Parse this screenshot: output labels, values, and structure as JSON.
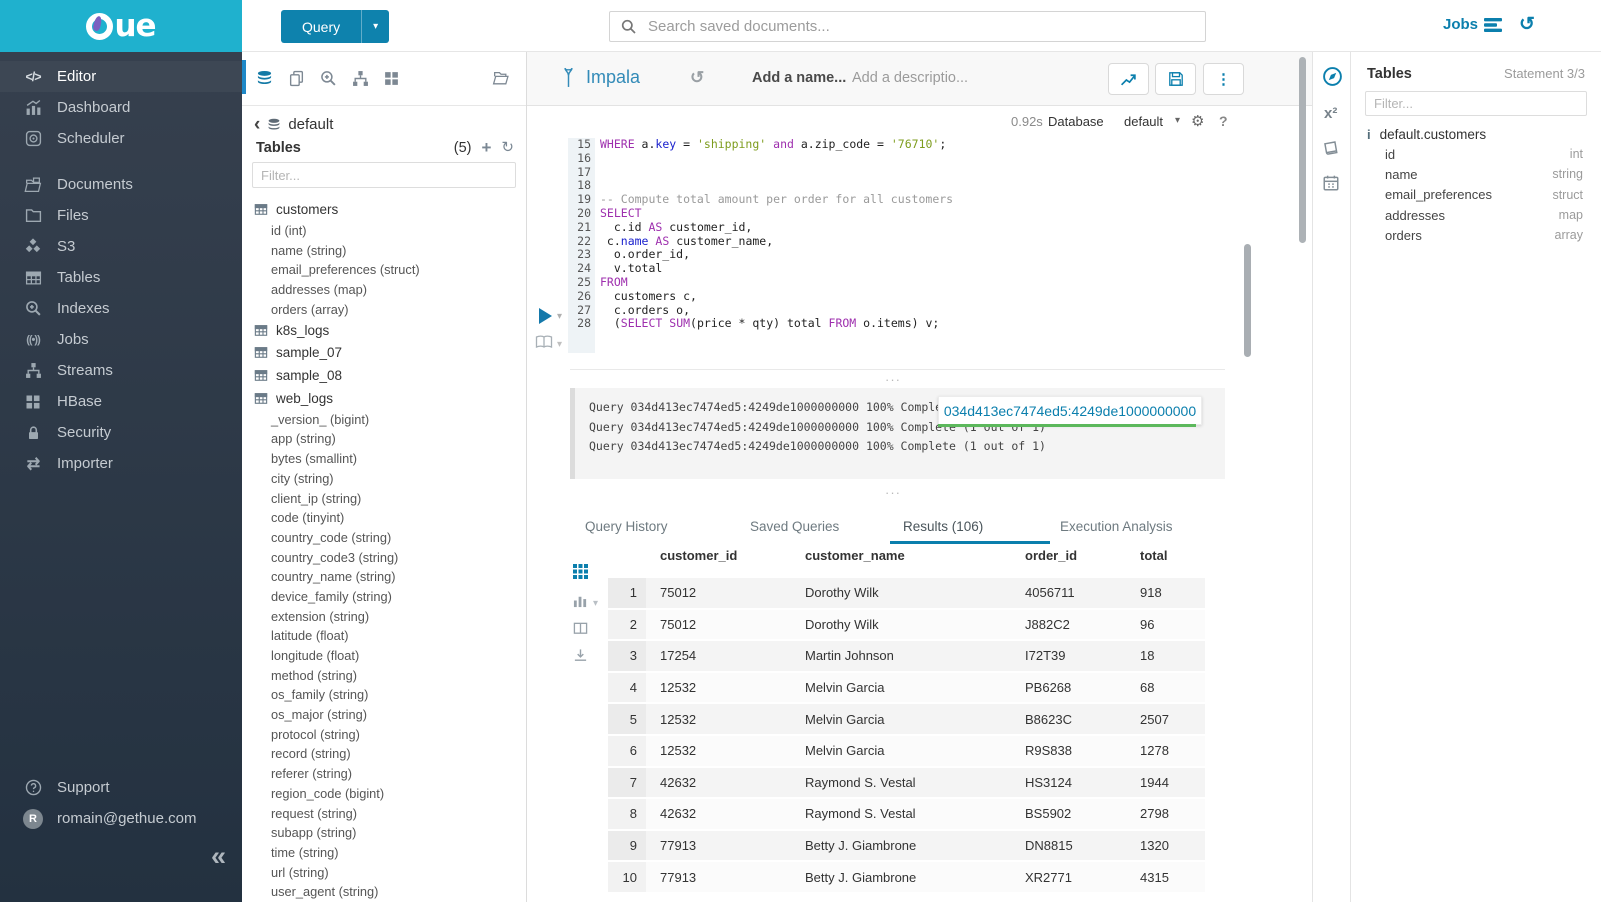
{
  "topbar": {
    "query_button": "Query",
    "query_caret": "▾",
    "search_placeholder": "Search saved documents...",
    "jobs_label": "Jobs",
    "history_glyph": "↺"
  },
  "logo": {
    "text": "ue"
  },
  "sidebar": {
    "items": [
      {
        "label": "Editor",
        "icon": "code-icon",
        "active": true
      },
      {
        "label": "Dashboard",
        "icon": "dashboard-icon"
      },
      {
        "label": "Scheduler",
        "icon": "scheduler-icon"
      },
      {
        "label": "Documents",
        "icon": "documents-icon",
        "gap_before": true
      },
      {
        "label": "Files",
        "icon": "folder-icon"
      },
      {
        "label": "S3",
        "icon": "cubes-icon"
      },
      {
        "label": "Tables",
        "icon": "table-grid-icon"
      },
      {
        "label": "Indexes",
        "icon": "search-plus-icon"
      },
      {
        "label": "Jobs",
        "icon": "broadcast-icon"
      },
      {
        "label": "Streams",
        "icon": "sitemap-icon"
      },
      {
        "label": "HBase",
        "icon": "blocks-icon"
      },
      {
        "label": "Security",
        "icon": "lock-icon"
      },
      {
        "label": "Importer",
        "icon": "swap-arrows-icon"
      }
    ],
    "support_label": "Support",
    "user_email": "romain@gethue.com",
    "avatar_initial": "R",
    "collapse_glyph": "«"
  },
  "db_panel": {
    "back_glyph": "‹",
    "database": "default",
    "title": "Tables",
    "count": "(5)",
    "plus_glyph": "+",
    "refresh_glyph": "↻",
    "filter_placeholder": "Filter...",
    "tables": [
      {
        "name": "customers",
        "columns": [
          "id (int)",
          "name (string)",
          "email_preferences (struct)",
          "addresses (map)",
          "orders (array)"
        ]
      },
      {
        "name": "k8s_logs",
        "columns": []
      },
      {
        "name": "sample_07",
        "columns": []
      },
      {
        "name": "sample_08",
        "columns": []
      },
      {
        "name": "web_logs",
        "columns": [
          "_version_ (bigint)",
          "app (string)",
          "bytes (smallint)",
          "city (string)",
          "client_ip (string)",
          "code (tinyint)",
          "country_code (string)",
          "country_code3 (string)",
          "country_name (string)",
          "device_family (string)",
          "extension (string)",
          "latitude (float)",
          "longitude (float)",
          "method (string)",
          "os_family (string)",
          "os_major (string)",
          "protocol (string)",
          "record (string)",
          "referer (string)",
          "region_code (bigint)",
          "request (string)",
          "subapp (string)",
          "time (string)",
          "url (string)",
          "user_agent (string)"
        ]
      }
    ]
  },
  "editor": {
    "engine": "Impala",
    "history_glyph": "↺",
    "name_placeholder": "Add a name...",
    "description_placeholder": "Add a descriptio...",
    "duration": "0.92s",
    "database_label": "Database",
    "database_value": "default",
    "db_caret": "▾",
    "gear_glyph": "⚙",
    "help_glyph": "?",
    "kebab_glyph": "⋮",
    "play_caret": "▾",
    "lines": [
      {
        "no": "15",
        "segs": [
          [
            "WHERE ",
            "kw"
          ],
          [
            "a.",
            ""
          ],
          [
            "key",
            "idb"
          ],
          [
            " = ",
            ""
          ],
          [
            "'shipping'",
            "str"
          ],
          [
            " ",
            ""
          ],
          [
            "and",
            "kw"
          ],
          [
            " a.zip_code = ",
            ""
          ],
          [
            "'76710'",
            "str"
          ],
          [
            ";",
            ""
          ]
        ]
      },
      {
        "no": "16",
        "segs": []
      },
      {
        "no": "17",
        "segs": []
      },
      {
        "no": "18",
        "segs": []
      },
      {
        "no": "19",
        "segs": [
          [
            "-- Compute total amount per order for all customers",
            "cm"
          ]
        ]
      },
      {
        "no": "20",
        "segs": [
          [
            "SELECT",
            "kw"
          ]
        ]
      },
      {
        "no": "21",
        "segs": [
          [
            "  c.id ",
            ""
          ],
          [
            "AS",
            "kw"
          ],
          [
            " customer_id,",
            ""
          ]
        ]
      },
      {
        "no": "22",
        "segs": [
          [
            " c.",
            ""
          ],
          [
            "name",
            "idb"
          ],
          [
            " ",
            ""
          ],
          [
            "AS",
            "kw"
          ],
          [
            " customer_name,",
            ""
          ]
        ]
      },
      {
        "no": "23",
        "segs": [
          [
            "  o.order_id,",
            ""
          ]
        ]
      },
      {
        "no": "24",
        "segs": [
          [
            "  v.total",
            ""
          ]
        ]
      },
      {
        "no": "25",
        "segs": [
          [
            "FROM",
            "kw"
          ]
        ]
      },
      {
        "no": "26",
        "segs": [
          [
            "  customers c,",
            ""
          ]
        ]
      },
      {
        "no": "27",
        "segs": [
          [
            "  c.orders o,",
            ""
          ]
        ]
      },
      {
        "no": "28",
        "segs": [
          [
            "  (",
            ""
          ],
          [
            "SELECT",
            "kw"
          ],
          [
            " ",
            ""
          ],
          [
            "SUM",
            "kw"
          ],
          [
            "(price * qty) total ",
            ""
          ],
          [
            "FROM",
            "kw"
          ],
          [
            " o.items) v;",
            ""
          ]
        ]
      }
    ]
  },
  "log": {
    "lines": [
      "Query 034d413ec7474ed5:4249de1000000000 100% Complete (1 out of 1)",
      "Query 034d413ec7474ed5:4249de1000000000 100% Complete (1 out of 1)",
      "Query 034d413ec7474ed5:4249de1000000000 100% Complete (1 out of 1)"
    ],
    "tooltip_text": "034d413ec7474ed5:4249de1000000000",
    "drag_handle": "···"
  },
  "results": {
    "tabs": [
      {
        "label": "Query History"
      },
      {
        "label": "Saved Queries"
      },
      {
        "label": "Results (106)",
        "active": true
      },
      {
        "label": "Execution Analysis"
      }
    ],
    "columns": [
      "customer_id",
      "customer_name",
      "order_id",
      "total"
    ],
    "rows": [
      [
        "1",
        "75012",
        "Dorothy Wilk",
        "4056711",
        "918"
      ],
      [
        "2",
        "75012",
        "Dorothy Wilk",
        "J882C2",
        "96"
      ],
      [
        "3",
        "17254",
        "Martin Johnson",
        "I72T39",
        "18"
      ],
      [
        "4",
        "12532",
        "Melvin Garcia",
        "PB6268",
        "68"
      ],
      [
        "5",
        "12532",
        "Melvin Garcia",
        "B8623C",
        "2507"
      ],
      [
        "6",
        "12532",
        "Melvin Garcia",
        "R9S838",
        "1278"
      ],
      [
        "7",
        "42632",
        "Raymond S. Vestal",
        "HS3124",
        "1944"
      ],
      [
        "8",
        "42632",
        "Raymond S. Vestal",
        "BS5902",
        "2798"
      ],
      [
        "9",
        "77913",
        "Betty J. Giambrone",
        "DN8815",
        "1320"
      ],
      [
        "10",
        "77913",
        "Betty J. Giambrone",
        "XR2771",
        "4315"
      ]
    ],
    "rail_caret": "▾"
  },
  "right_panel": {
    "title": "Tables",
    "statement": "Statement 3/3",
    "filter_placeholder": "Filter...",
    "info_glyph": "i",
    "table_name": "default.customers",
    "x2_label": "x²",
    "columns": [
      {
        "name": "id",
        "type": "int"
      },
      {
        "name": "name",
        "type": "string"
      },
      {
        "name": "email_preferences",
        "type": "struct"
      },
      {
        "name": "addresses",
        "type": "map"
      },
      {
        "name": "orders",
        "type": "array"
      }
    ]
  },
  "colors": {
    "brand_cyan": "#1fb1ce",
    "primary_blue": "#0b7fad",
    "keyword_purple": "#9e2fae",
    "string_green": "#7d9c1d",
    "identifier_blue": "#1a21cd",
    "tooltip_underline_green": "#5cb85c"
  }
}
